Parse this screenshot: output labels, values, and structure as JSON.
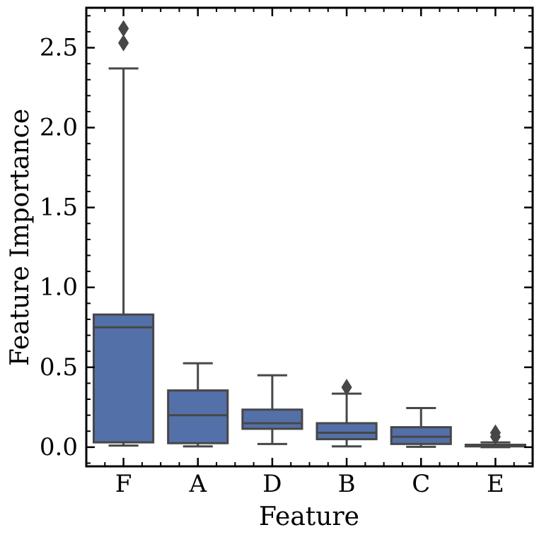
{
  "chart_data": {
    "type": "boxplot",
    "xlabel": "Feature",
    "ylabel": "Feature Importance",
    "categories": [
      "F",
      "A",
      "D",
      "B",
      "C",
      "E"
    ],
    "ylim": [
      -0.12,
      2.75
    ],
    "yticks": [
      0.0,
      0.5,
      1.0,
      1.5,
      2.0,
      2.5
    ],
    "ytick_labels": [
      "0.0",
      "0.5",
      "1.0",
      "1.5",
      "2.0",
      "2.5"
    ],
    "boxes": [
      {
        "category": "F",
        "whisker_low": 0.01,
        "q1": 0.03,
        "median": 0.75,
        "q3": 0.83,
        "whisker_high": 2.37,
        "outliers": [
          2.53,
          2.62
        ]
      },
      {
        "category": "A",
        "whisker_low": 0.005,
        "q1": 0.025,
        "median": 0.2,
        "q3": 0.355,
        "whisker_high": 0.525,
        "outliers": []
      },
      {
        "category": "D",
        "whisker_low": 0.02,
        "q1": 0.115,
        "median": 0.15,
        "q3": 0.235,
        "whisker_high": 0.45,
        "outliers": []
      },
      {
        "category": "B",
        "whisker_low": 0.005,
        "q1": 0.05,
        "median": 0.09,
        "q3": 0.15,
        "whisker_high": 0.335,
        "outliers": [
          0.375
        ]
      },
      {
        "category": "C",
        "whisker_low": 0.002,
        "q1": 0.02,
        "median": 0.065,
        "q3": 0.125,
        "whisker_high": 0.245,
        "outliers": []
      },
      {
        "category": "E",
        "whisker_low": 0.0,
        "q1": 0.005,
        "median": 0.01,
        "q3": 0.015,
        "whisker_high": 0.03,
        "outliers": [
          0.065,
          0.09
        ]
      }
    ],
    "colors": {
      "box_fill": "#5470a8",
      "line": "#474747"
    },
    "grid": false,
    "legend": "none"
  }
}
